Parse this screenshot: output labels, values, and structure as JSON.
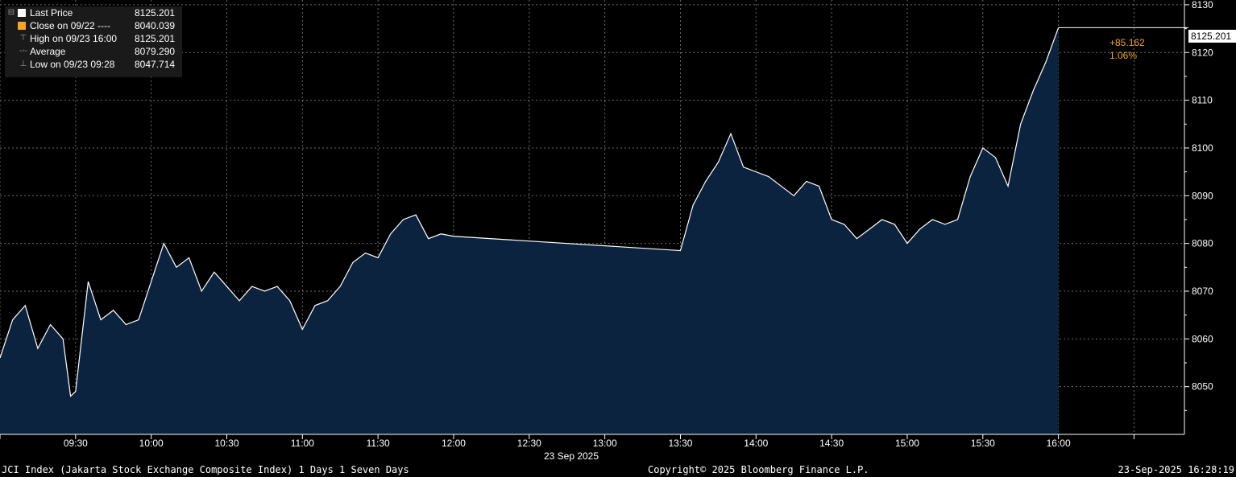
{
  "legend": {
    "items": [
      {
        "label": "Last Price",
        "value": "8125.201",
        "color": "#ffffff",
        "icon": "collapse-box-icon"
      },
      {
        "label": "Close on 09/22 ----",
        "value": "8040.039",
        "color": "#f5a623",
        "icon": ""
      },
      {
        "label": "High on 09/23 16:00",
        "value": "8125.201",
        "color": "",
        "icon": "high-marker-icon"
      },
      {
        "label": "Average",
        "value": "8079.290",
        "color": "",
        "icon": "average-line-icon"
      },
      {
        "label": "Low on 09/23 09:28",
        "value": "8047.714",
        "color": "",
        "icon": "low-marker-icon"
      }
    ]
  },
  "last_price_tag": "8125.201",
  "change_abs": "+85.162",
  "change_pct": "1.06%",
  "date_label": "23 Sep 2025",
  "footer": {
    "left": "JCI Index (Jakarta Stock Exchange Composite Index) 1 Days 1 Seven Days",
    "center": "Copyright© 2025 Bloomberg Finance L.P.",
    "right": "23-Sep-2025 16:28:19"
  },
  "colors": {
    "line": "#ffffff",
    "fill": "#0c2340",
    "change": "#f5a623",
    "grid": "#6a6a6a"
  },
  "chart_data": {
    "type": "area",
    "series": [
      {
        "name": "Last Price",
        "x": [
          "09:00",
          "09:05",
          "09:10",
          "09:15",
          "09:20",
          "09:25",
          "09:28",
          "09:30",
          "09:35",
          "09:40",
          "09:45",
          "09:50",
          "09:55",
          "10:00",
          "10:05",
          "10:10",
          "10:15",
          "10:20",
          "10:25",
          "10:30",
          "10:35",
          "10:40",
          "10:45",
          "10:50",
          "10:55",
          "11:00",
          "11:05",
          "11:10",
          "11:15",
          "11:20",
          "11:25",
          "11:30",
          "11:35",
          "11:40",
          "11:45",
          "11:50",
          "11:55",
          "12:00",
          "13:30",
          "13:35",
          "13:40",
          "13:45",
          "13:50",
          "13:55",
          "14:00",
          "14:05",
          "14:10",
          "14:15",
          "14:20",
          "14:25",
          "14:30",
          "14:35",
          "14:40",
          "14:45",
          "14:50",
          "14:55",
          "15:00",
          "15:05",
          "15:10",
          "15:15",
          "15:20",
          "15:25",
          "15:30",
          "15:35",
          "15:40",
          "15:45",
          "15:50",
          "15:55",
          "16:00"
        ],
        "values": [
          8056,
          8064,
          8067,
          8058,
          8063,
          8060,
          8048,
          8049,
          8072,
          8064,
          8066,
          8063,
          8064,
          8072,
          8080,
          8075,
          8077,
          8070,
          8074,
          8071,
          8068,
          8071,
          8070,
          8071,
          8068,
          8062,
          8067,
          8068,
          8071,
          8076,
          8078,
          8077,
          8082,
          8085,
          8086,
          8081,
          8082,
          8081.5,
          8078.5,
          8088,
          8093,
          8097,
          8103,
          8096,
          8095,
          8094,
          8092,
          8090,
          8093,
          8092,
          8085,
          8084,
          8081,
          8083,
          8085,
          8084,
          8080,
          8083,
          8085,
          8084,
          8085,
          8094,
          8100,
          8098,
          8092,
          8105,
          8112,
          8118,
          8125.201
        ]
      }
    ],
    "reference_lines": [
      {
        "label": "Close on 09/22",
        "value": 8040.039
      }
    ],
    "x_ticks": [
      "09:30",
      "10:00",
      "10:30",
      "11:00",
      "11:30",
      "12:00",
      "12:30",
      "13:00",
      "13:30",
      "14:00",
      "14:30",
      "15:00",
      "15:30",
      "16:00"
    ],
    "y_ticks": [
      8050,
      8060,
      8070,
      8080,
      8090,
      8100,
      8110,
      8120,
      8130
    ],
    "xlim": [
      "09:00",
      "16:50"
    ],
    "ylim": [
      8040,
      8131
    ],
    "grid": true,
    "legend_position": "top-left",
    "y_axis_side": "right"
  }
}
